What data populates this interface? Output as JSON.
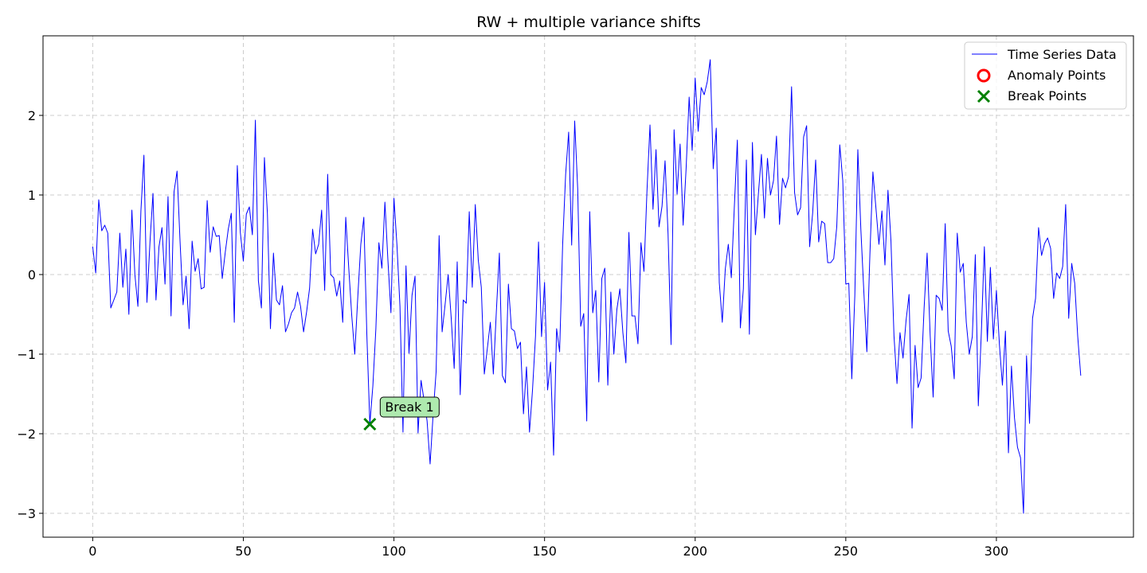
{
  "chart_data": {
    "type": "line",
    "title": "RW + multiple variance shifts",
    "xlabel": "",
    "ylabel": "",
    "xlim": [
      -16.5,
      345.5
    ],
    "ylim": [
      -3.3,
      3.0
    ],
    "xticks": [
      0,
      50,
      100,
      150,
      200,
      250,
      300
    ],
    "yticks": [
      -3,
      -2,
      -1,
      0,
      1,
      2
    ],
    "grid": true,
    "legend_position": "top-right",
    "colors": {
      "line": "#0000ff",
      "anomaly": "#ff0000",
      "break": "#008000",
      "annotation_fill": "#aee9ae"
    },
    "series": [
      {
        "name": "Time Series Data",
        "x_start": 0,
        "y": [
          0.35,
          0.02,
          0.94,
          0.55,
          0.62,
          0.52,
          -0.42,
          -0.32,
          -0.22,
          0.52,
          -0.16,
          0.32,
          -0.5,
          0.81,
          0.0,
          -0.4,
          0.8,
          1.5,
          -0.35,
          0.4,
          1.02,
          -0.32,
          0.35,
          0.59,
          -0.12,
          0.98,
          -0.52,
          1.04,
          1.3,
          0.41,
          -0.38,
          -0.02,
          -0.68,
          0.42,
          0.04,
          0.2,
          -0.18,
          -0.16,
          0.93,
          0.28,
          0.6,
          0.48,
          0.49,
          -0.05,
          0.28,
          0.57,
          0.77,
          -0.6,
          1.37,
          0.53,
          0.17,
          0.76,
          0.85,
          0.5,
          1.94,
          -0.08,
          -0.42,
          1.47,
          0.76,
          -0.68,
          0.27,
          -0.32,
          -0.38,
          -0.14,
          -0.72,
          -0.62,
          -0.48,
          -0.42,
          -0.22,
          -0.4,
          -0.72,
          -0.47,
          -0.17,
          0.57,
          0.26,
          0.38,
          0.81,
          -0.2,
          1.26,
          0.0,
          -0.04,
          -0.27,
          -0.08,
          -0.6,
          0.72,
          0.08,
          -0.52,
          -1.0,
          -0.28,
          0.38,
          0.72,
          -0.75,
          -1.88,
          -1.4,
          -0.68,
          0.4,
          0.08,
          0.91,
          0.18,
          -0.48,
          0.96,
          0.37,
          -0.4,
          -1.98,
          0.11,
          -0.99,
          -0.26,
          -0.02,
          -1.99,
          -1.33,
          -1.58,
          -1.84,
          -2.38,
          -1.76,
          -1.22,
          0.49,
          -0.72,
          -0.37,
          0.0,
          -0.54,
          -1.18,
          0.16,
          -1.51,
          -0.32,
          -0.36,
          0.79,
          -0.16,
          0.88,
          0.18,
          -0.16,
          -1.25,
          -0.93,
          -0.6,
          -1.25,
          -0.46,
          0.27,
          -1.27,
          -1.36,
          -0.12,
          -0.68,
          -0.71,
          -0.93,
          -0.85,
          -1.75,
          -1.16,
          -1.98,
          -1.45,
          -0.77,
          0.41,
          -0.78,
          -0.1,
          -1.45,
          -1.1,
          -2.27,
          -0.68,
          -0.97,
          0.37,
          1.26,
          1.79,
          0.37,
          1.93,
          1.08,
          -0.65,
          -0.49,
          -1.84,
          0.79,
          -0.48,
          -0.2,
          -1.35,
          -0.05,
          0.08,
          -1.39,
          -0.22,
          -1.0,
          -0.44,
          -0.18,
          -0.73,
          -1.11,
          0.53,
          -0.52,
          -0.52,
          -0.87,
          0.4,
          0.04,
          1.05,
          1.88,
          0.82,
          1.57,
          0.6,
          0.86,
          1.43,
          0.51,
          -0.88,
          1.82,
          1.01,
          1.64,
          0.62,
          1.34,
          2.23,
          1.56,
          2.47,
          1.8,
          2.35,
          2.26,
          2.42,
          2.7,
          1.33,
          1.84,
          -0.1,
          -0.6,
          0.07,
          0.38,
          -0.04,
          0.85,
          1.69,
          -0.67,
          -0.18,
          1.44,
          -0.75,
          1.66,
          0.5,
          1.02,
          1.51,
          0.71,
          1.46,
          1.0,
          1.18,
          1.74,
          0.63,
          1.21,
          1.09,
          1.23,
          2.36,
          1.03,
          0.75,
          0.84,
          1.73,
          1.87,
          0.35,
          0.77,
          1.44,
          0.41,
          0.67,
          0.64,
          0.15,
          0.15,
          0.2,
          0.6,
          1.63,
          1.18,
          -0.12,
          -0.11,
          -1.31,
          -0.26,
          1.57,
          0.57,
          -0.22,
          -0.97,
          0.25,
          1.29,
          0.84,
          0.38,
          0.8,
          0.12,
          1.06,
          0.42,
          -0.77,
          -1.37,
          -0.73,
          -1.05,
          -0.58,
          -0.25,
          -1.93,
          -0.89,
          -1.42,
          -1.3,
          -0.42,
          0.27,
          -0.75,
          -1.54,
          -0.26,
          -0.3,
          -0.45,
          0.64,
          -0.71,
          -0.9,
          -1.31,
          0.52,
          0.03,
          0.14,
          -0.6,
          -1.0,
          -0.78,
          0.25,
          -1.65,
          -0.73,
          0.35,
          -0.84,
          0.09,
          -0.81,
          -0.2,
          -0.88,
          -1.39,
          -0.71,
          -2.24,
          -1.15,
          -1.8,
          -2.17,
          -2.3,
          -3.0,
          -1.02,
          -1.87,
          -0.55,
          -0.3,
          0.59,
          0.24,
          0.39,
          0.46,
          0.33,
          -0.3,
          0.02,
          -0.05,
          0.1,
          0.88,
          -0.55,
          0.14,
          -0.11,
          -0.78,
          -1.27
        ]
      },
      {
        "name": "Anomaly Points",
        "x": [],
        "y": []
      },
      {
        "name": "Break Points",
        "x": [
          92
        ],
        "y": [
          -1.88
        ]
      }
    ],
    "annotations": [
      {
        "text": "Break 1",
        "x": 92,
        "y": -1.88
      }
    ]
  }
}
